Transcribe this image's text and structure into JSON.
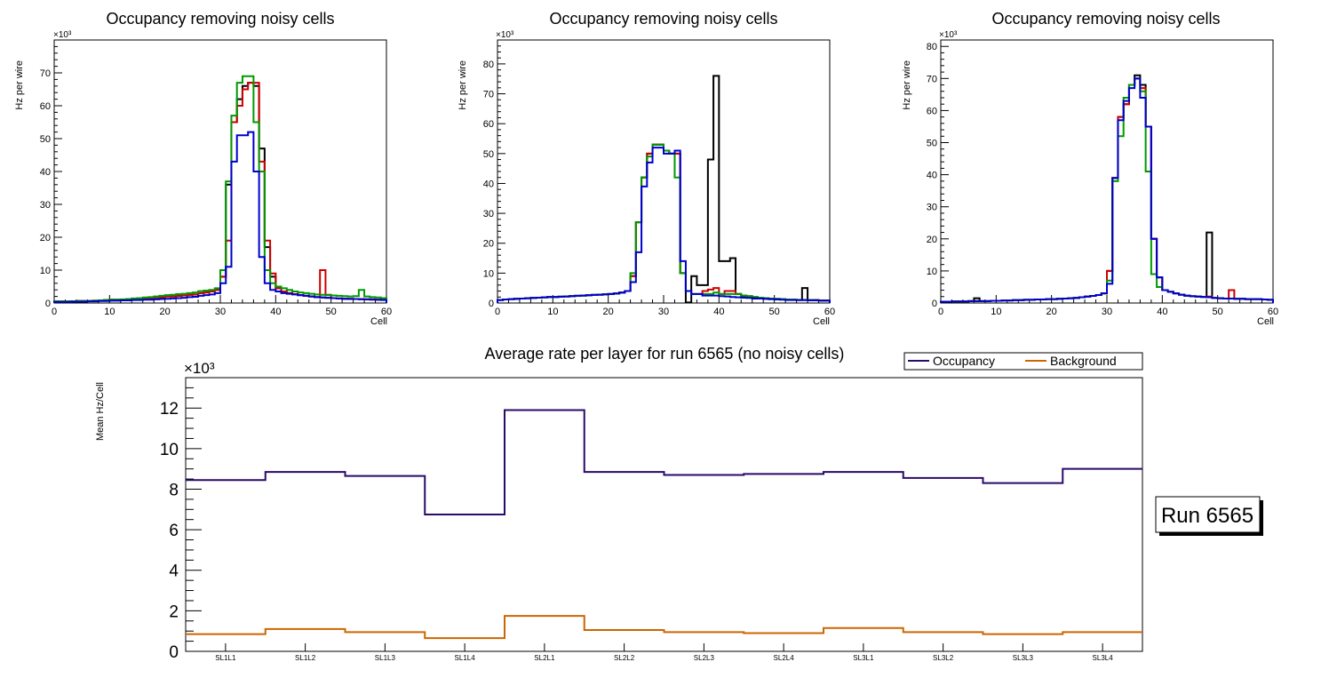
{
  "chart_data": [
    {
      "type": "line",
      "title": "Occupancy removing noisy cells",
      "xlabel": "Cell",
      "ylabel": "Hz per wire",
      "yscale_label": "×10³",
      "xlim": [
        0,
        60
      ],
      "ylim": [
        0,
        80
      ],
      "xticks": [
        0,
        10,
        20,
        30,
        40,
        50,
        60
      ],
      "yticks": [
        0,
        10,
        20,
        30,
        40,
        50,
        60,
        70
      ],
      "series": [
        {
          "name": "black",
          "color": "#000000",
          "values": [
            0.5,
            0.5,
            0.5,
            0.5,
            0.6,
            0.6,
            0.6,
            0.7,
            0.8,
            0.9,
            1,
            1,
            1,
            1.2,
            1.3,
            1.3,
            1.5,
            1.5,
            1.7,
            1.8,
            2,
            2,
            2.2,
            2.3,
            2.5,
            2.6,
            3,
            3.2,
            3.5,
            4,
            8,
            36,
            55,
            62,
            66,
            67,
            66,
            47,
            17,
            8,
            4.5,
            3.5,
            3,
            2.7,
            2.4,
            2.2,
            2,
            1.8,
            1.7,
            1.6,
            1.5,
            1.4,
            1.3,
            1.3,
            1.2,
            1.2,
            1.1,
            1.1,
            1,
            1
          ]
        },
        {
          "name": "red",
          "color": "#cc0000",
          "values": [
            0.5,
            0.5,
            0.5,
            0.5,
            0.6,
            0.6,
            0.6,
            0.7,
            0.8,
            0.9,
            1,
            1,
            1,
            1.2,
            1.3,
            1.3,
            1.5,
            1.5,
            1.7,
            1.8,
            2,
            2,
            2.2,
            2.3,
            2.5,
            2.6,
            3,
            3.2,
            3.5,
            4,
            8,
            19,
            55,
            60,
            65,
            67,
            67,
            43,
            19,
            9,
            4.5,
            3.5,
            3,
            2.7,
            2.4,
            2.2,
            2,
            1.8,
            10,
            2.5,
            1.5,
            1.4,
            1.3,
            1.3,
            1.2,
            1.2,
            1.1,
            1.1,
            1,
            1
          ]
        },
        {
          "name": "green",
          "color": "#009900",
          "values": [
            0.5,
            0.5,
            0.5,
            0.5,
            0.6,
            0.6,
            0.6,
            0.7,
            0.8,
            0.9,
            1,
            1,
            1.1,
            1.2,
            1.4,
            1.5,
            1.7,
            1.8,
            2,
            2.2,
            2.4,
            2.5,
            2.7,
            2.8,
            3,
            3.2,
            3.6,
            3.8,
            4,
            4.5,
            10,
            37,
            57,
            67,
            69,
            69,
            55,
            40,
            10,
            6,
            5,
            4.5,
            4,
            3.5,
            3.2,
            3,
            2.8,
            2.6,
            2.5,
            2.4,
            2.3,
            2.2,
            2.1,
            2,
            2.1,
            4,
            2,
            1.8,
            1.7,
            1.5
          ]
        },
        {
          "name": "blue",
          "color": "#0000cc",
          "values": [
            0.3,
            0.3,
            0.3,
            0.4,
            0.4,
            0.4,
            0.5,
            0.5,
            0.6,
            0.6,
            0.7,
            0.7,
            0.8,
            0.8,
            0.9,
            0.9,
            1,
            1,
            1.1,
            1.2,
            1.3,
            1.4,
            1.5,
            1.6,
            1.8,
            1.9,
            2.2,
            2.4,
            2.6,
            3,
            6,
            11,
            43,
            51,
            51,
            52,
            40,
            14,
            6,
            4,
            3.5,
            3,
            2.8,
            2.6,
            2.4,
            2.2,
            2,
            1.8,
            1.7,
            1.6,
            1.5,
            1.4,
            1.3,
            1.2,
            1.2,
            1.1,
            1.1,
            1,
            1,
            0.9
          ]
        }
      ]
    },
    {
      "type": "line",
      "title": "Occupancy removing noisy cells",
      "xlabel": "Cell",
      "ylabel": "Hz per wire",
      "yscale_label": "×10³",
      "xlim": [
        0,
        60
      ],
      "ylim": [
        0,
        88
      ],
      "xticks": [
        0,
        10,
        20,
        30,
        40,
        50,
        60
      ],
      "yticks": [
        0,
        10,
        20,
        30,
        40,
        50,
        60,
        70,
        80
      ],
      "series": [
        {
          "name": "black",
          "color": "#000000",
          "values": [
            1,
            1.2,
            1.3,
            1.4,
            1.5,
            1.6,
            1.7,
            1.8,
            1.9,
            2,
            2,
            2.1,
            2.2,
            2.3,
            2.4,
            2.5,
            2.6,
            2.7,
            2.8,
            2.9,
            3,
            3.2,
            3.5,
            4,
            9,
            27,
            42,
            50,
            53,
            53,
            51,
            50,
            50,
            10,
            0.2,
            9,
            6,
            6,
            48,
            76,
            14,
            14,
            15,
            3,
            2,
            2,
            1.5,
            1.5,
            1.4,
            1.3,
            1.2,
            1.2,
            1.1,
            1.1,
            1,
            5,
            1,
            1,
            0.8,
            0.8
          ]
        },
        {
          "name": "red",
          "color": "#cc0000",
          "values": [
            1,
            1.2,
            1.3,
            1.4,
            1.5,
            1.6,
            1.7,
            1.8,
            1.9,
            2,
            2,
            2.1,
            2.2,
            2.3,
            2.4,
            2.5,
            2.6,
            2.7,
            2.8,
            2.9,
            3,
            3.2,
            3.5,
            4,
            9,
            27,
            42,
            50,
            53,
            53,
            51,
            50,
            50,
            10,
            4,
            3,
            3,
            4,
            4.5,
            5,
            3,
            4,
            4,
            3,
            2.5,
            2.3,
            2,
            1.8,
            1.6,
            1.5,
            1.4,
            1.3,
            1.2,
            1.1,
            1,
            1,
            1,
            0.9,
            0.8,
            0.8
          ]
        },
        {
          "name": "green",
          "color": "#009900",
          "values": [
            1,
            1.2,
            1.3,
            1.4,
            1.5,
            1.6,
            1.7,
            1.8,
            1.9,
            2,
            2,
            2.1,
            2.2,
            2.3,
            2.4,
            2.5,
            2.6,
            2.7,
            2.8,
            2.9,
            3,
            3.2,
            3.5,
            4,
            10,
            27,
            42,
            49,
            53,
            53,
            51,
            50,
            42,
            10,
            4,
            3,
            3,
            3,
            3,
            3.5,
            3,
            3,
            3,
            3,
            2.5,
            2.3,
            2,
            1.8,
            1.6,
            1.5,
            1.4,
            1.3,
            1.2,
            1.1,
            1,
            1,
            1,
            0.9,
            0.8,
            0.8
          ]
        },
        {
          "name": "blue",
          "color": "#0000cc",
          "values": [
            1,
            1.2,
            1.3,
            1.4,
            1.5,
            1.6,
            1.7,
            1.8,
            1.9,
            2,
            2,
            2.1,
            2.2,
            2.3,
            2.4,
            2.5,
            2.6,
            2.7,
            2.8,
            2.9,
            3,
            3.2,
            3.5,
            4,
            7,
            17,
            39,
            47,
            52,
            52,
            50,
            50,
            51,
            14,
            4,
            3,
            3,
            2.5,
            2.5,
            2.5,
            2.3,
            2.2,
            2,
            1.9,
            1.8,
            1.7,
            1.6,
            1.5,
            1.4,
            1.3,
            1.2,
            1.1,
            1,
            1,
            1,
            1,
            0.9,
            0.9,
            0.8,
            0.8
          ]
        }
      ]
    },
    {
      "type": "line",
      "title": "Occupancy removing noisy cells",
      "xlabel": "Cell",
      "ylabel": "Hz per wire",
      "yscale_label": "×10³",
      "xlim": [
        0,
        60
      ],
      "ylim": [
        0,
        82
      ],
      "xticks": [
        0,
        10,
        20,
        30,
        40,
        50,
        60
      ],
      "yticks": [
        0,
        10,
        20,
        30,
        40,
        50,
        60,
        70,
        80
      ],
      "series": [
        {
          "name": "black",
          "color": "#000000",
          "values": [
            0.4,
            0.4,
            0.5,
            0.5,
            0.5,
            0.6,
            1.5,
            0.6,
            0.6,
            0.7,
            0.7,
            0.8,
            0.8,
            0.9,
            0.9,
            1,
            1,
            1.1,
            1.1,
            1.2,
            1.2,
            1.3,
            1.4,
            1.5,
            1.6,
            1.8,
            2,
            2.2,
            2.5,
            3,
            10,
            39,
            58,
            62,
            68,
            71,
            68,
            55,
            20,
            8,
            4,
            3.5,
            3,
            2.6,
            2.3,
            2.1,
            2,
            1.9,
            22,
            1.6,
            1.5,
            1.4,
            1.4,
            1.3,
            1.3,
            1.2,
            1.2,
            1.2,
            1.1,
            1
          ]
        },
        {
          "name": "red",
          "color": "#cc0000",
          "values": [
            0.4,
            0.4,
            0.5,
            0.5,
            0.5,
            0.6,
            0.6,
            0.6,
            0.6,
            0.7,
            0.7,
            0.8,
            0.8,
            0.9,
            0.9,
            1,
            1,
            1.1,
            1.1,
            1.2,
            1.2,
            1.3,
            1.4,
            1.5,
            1.6,
            1.8,
            2,
            2.2,
            2.5,
            3,
            10,
            39,
            58,
            62,
            68,
            70,
            67,
            55,
            20,
            8,
            4,
            3.5,
            3,
            2.6,
            2.3,
            2.1,
            2,
            1.9,
            2,
            1.6,
            1.5,
            1.4,
            4,
            1.3,
            1.3,
            1.2,
            1.2,
            1.2,
            1.1,
            1
          ]
        },
        {
          "name": "green",
          "color": "#009900",
          "values": [
            0.4,
            0.4,
            0.5,
            0.5,
            0.5,
            0.6,
            0.6,
            0.6,
            0.6,
            0.7,
            0.7,
            0.8,
            0.8,
            0.9,
            0.9,
            1,
            1,
            1.1,
            1.1,
            1.2,
            1.2,
            1.3,
            1.4,
            1.5,
            1.6,
            1.8,
            2,
            2.2,
            2.5,
            3,
            7,
            38,
            52,
            64,
            68,
            70,
            66,
            41,
            9,
            5,
            4,
            3.5,
            3,
            2.6,
            2.3,
            2.1,
            2,
            1.9,
            1.8,
            1.6,
            1.5,
            1.4,
            1.4,
            1.3,
            1.3,
            1.2,
            1.2,
            1.2,
            1.1,
            1
          ]
        },
        {
          "name": "blue",
          "color": "#0000cc",
          "values": [
            0.4,
            0.4,
            0.5,
            0.5,
            0.5,
            0.6,
            0.6,
            0.6,
            0.6,
            0.7,
            0.7,
            0.8,
            0.8,
            0.9,
            0.9,
            1,
            1,
            1.1,
            1.1,
            1.2,
            1.2,
            1.3,
            1.4,
            1.5,
            1.6,
            1.8,
            2,
            2.2,
            2.5,
            3,
            6,
            39,
            57,
            63,
            67,
            70,
            64,
            55,
            20,
            8,
            4,
            3.5,
            3,
            2.6,
            2.3,
            2.1,
            2,
            1.9,
            1.8,
            1.6,
            1.5,
            1.4,
            1.4,
            1.3,
            1.3,
            1.2,
            1.2,
            1.2,
            1.1,
            1
          ]
        }
      ]
    },
    {
      "type": "line",
      "title": "Average rate per layer for run 6565 (no noisy cells)",
      "xlabel": "",
      "ylabel": "Mean Hz/Cell",
      "yscale_label": "×10³",
      "ylim": [
        0,
        13.5
      ],
      "yticks": [
        0,
        2,
        4,
        6,
        8,
        10,
        12
      ],
      "categories": [
        "SL1L1",
        "SL1L2",
        "SL1L3",
        "SL1L4",
        "SL2L1",
        "SL2L2",
        "SL2L3",
        "SL2L4",
        "SL3L1",
        "SL3L2",
        "SL3L3",
        "SL3L4"
      ],
      "series": [
        {
          "name": "Occupancy",
          "color": "#2a0a6a",
          "values": [
            8.45,
            8.85,
            8.65,
            6.75,
            11.9,
            8.85,
            8.7,
            8.75,
            8.85,
            8.55,
            8.3,
            9.0
          ]
        },
        {
          "name": "Background",
          "color": "#cc6600",
          "values": [
            0.85,
            1.1,
            0.95,
            0.65,
            1.75,
            1.05,
            0.95,
            0.9,
            1.15,
            0.95,
            0.85,
            0.95
          ]
        }
      ],
      "legend_position": "top-right"
    }
  ],
  "run_label": "Run 6565"
}
